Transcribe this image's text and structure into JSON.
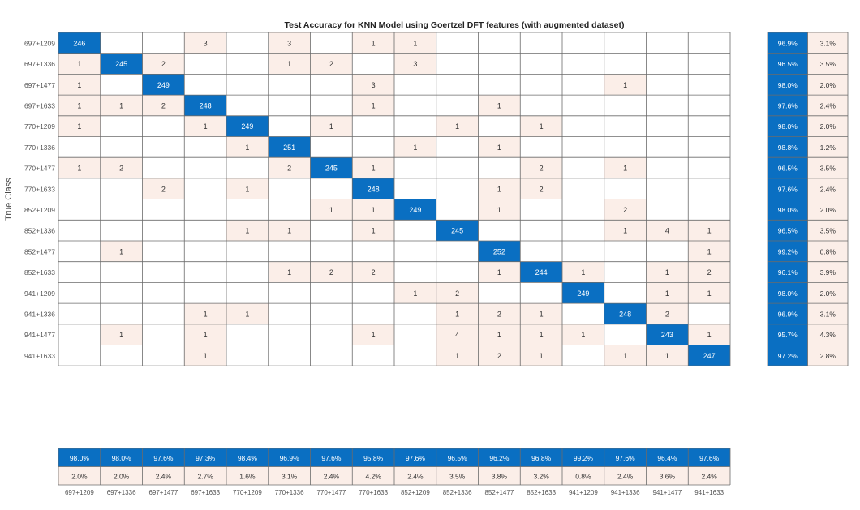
{
  "chart_data": {
    "type": "heatmap",
    "title": "Test Accuracy for KNN Model using Goertzel DFT features (with augmented dataset)",
    "ylabel": "True Class",
    "xlabel": "",
    "classes": [
      "697+1209",
      "697+1336",
      "697+1477",
      "697+1633",
      "770+1209",
      "770+1336",
      "770+1477",
      "770+1633",
      "852+1209",
      "852+1336",
      "852+1477",
      "852+1633",
      "941+1209",
      "941+1336",
      "941+1477",
      "941+1633"
    ],
    "matrix": [
      [
        246,
        0,
        0,
        3,
        0,
        3,
        0,
        1,
        1,
        0,
        0,
        0,
        0,
        0,
        0,
        0
      ],
      [
        1,
        245,
        2,
        0,
        0,
        1,
        2,
        0,
        3,
        0,
        0,
        0,
        0,
        0,
        0,
        0
      ],
      [
        1,
        0,
        249,
        0,
        0,
        0,
        0,
        3,
        0,
        0,
        0,
        0,
        0,
        1,
        0,
        0
      ],
      [
        1,
        1,
        2,
        248,
        0,
        0,
        0,
        1,
        0,
        0,
        1,
        0,
        0,
        0,
        0,
        0
      ],
      [
        1,
        0,
        0,
        1,
        249,
        0,
        1,
        0,
        0,
        1,
        0,
        1,
        0,
        0,
        0,
        0
      ],
      [
        0,
        0,
        0,
        0,
        1,
        251,
        0,
        0,
        1,
        0,
        1,
        0,
        0,
        0,
        0,
        0
      ],
      [
        1,
        2,
        0,
        0,
        0,
        2,
        245,
        1,
        0,
        0,
        0,
        2,
        0,
        1,
        0,
        0
      ],
      [
        0,
        0,
        2,
        0,
        1,
        0,
        0,
        248,
        0,
        0,
        1,
        2,
        0,
        0,
        0,
        0
      ],
      [
        0,
        0,
        0,
        0,
        0,
        0,
        1,
        1,
        249,
        0,
        1,
        0,
        0,
        2,
        0,
        0
      ],
      [
        0,
        0,
        0,
        0,
        1,
        1,
        0,
        1,
        0,
        245,
        0,
        0,
        0,
        1,
        4,
        1
      ],
      [
        0,
        1,
        0,
        0,
        0,
        0,
        0,
        0,
        0,
        0,
        252,
        0,
        0,
        0,
        0,
        1
      ],
      [
        0,
        0,
        0,
        0,
        0,
        1,
        2,
        2,
        0,
        0,
        1,
        244,
        1,
        0,
        1,
        2
      ],
      [
        0,
        0,
        0,
        0,
        0,
        0,
        0,
        0,
        1,
        2,
        0,
        0,
        249,
        0,
        1,
        1
      ],
      [
        0,
        0,
        0,
        1,
        1,
        0,
        0,
        0,
        0,
        1,
        2,
        1,
        0,
        248,
        2,
        0
      ],
      [
        0,
        1,
        0,
        1,
        0,
        0,
        0,
        1,
        0,
        4,
        1,
        1,
        1,
        0,
        243,
        1
      ],
      [
        0,
        0,
        0,
        1,
        0,
        0,
        0,
        0,
        0,
        1,
        2,
        1,
        0,
        1,
        1,
        247
      ]
    ],
    "row_summary": {
      "correct": [
        "96.9%",
        "96.5%",
        "98.0%",
        "97.6%",
        "98.0%",
        "98.8%",
        "96.5%",
        "97.6%",
        "98.0%",
        "96.5%",
        "99.2%",
        "96.1%",
        "98.0%",
        "96.9%",
        "95.7%",
        "97.2%"
      ],
      "incorrect": [
        "3.1%",
        "3.5%",
        "2.0%",
        "2.4%",
        "2.0%",
        "1.2%",
        "3.5%",
        "2.4%",
        "2.0%",
        "3.5%",
        "0.8%",
        "3.9%",
        "2.0%",
        "3.1%",
        "4.3%",
        "2.8%"
      ]
    },
    "col_summary": {
      "correct": [
        "98.0%",
        "98.0%",
        "97.6%",
        "97.3%",
        "98.4%",
        "96.9%",
        "97.6%",
        "95.8%",
        "97.6%",
        "96.5%",
        "96.2%",
        "96.8%",
        "99.2%",
        "97.6%",
        "96.4%",
        "97.6%"
      ],
      "incorrect": [
        "2.0%",
        "2.0%",
        "2.4%",
        "2.7%",
        "1.6%",
        "3.1%",
        "2.4%",
        "4.2%",
        "2.4%",
        "3.5%",
        "3.8%",
        "3.2%",
        "0.8%",
        "2.4%",
        "3.6%",
        "2.4%"
      ]
    },
    "colors": {
      "diagonal": "#0a6fc2",
      "off_diagonal": "#fbeee8",
      "grid": "#6b6b6b",
      "text_dark": "#333333",
      "text_light": "#ffffff"
    }
  }
}
